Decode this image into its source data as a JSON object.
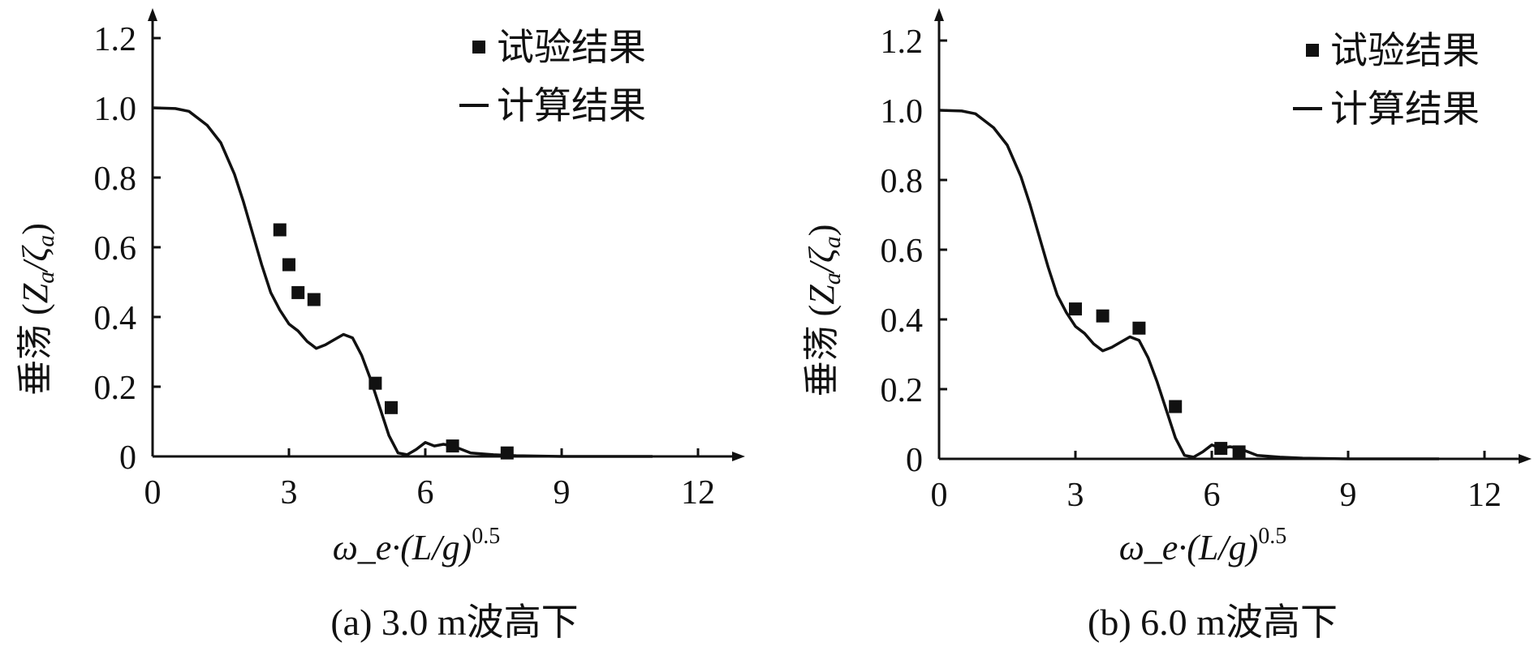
{
  "chart_data": [
    {
      "type": "scatter",
      "caption": "(a) 3.0 m波高下",
      "ylabel": "垂荡 (Z_a/ζ_a)",
      "xlabel_base": "ω_e·(L/g)",
      "xlabel_sup": "0.5",
      "xlim": [
        0,
        13
      ],
      "ylim": [
        0,
        1.3
      ],
      "xticks": [
        0,
        3,
        6,
        9,
        12
      ],
      "yticks": [
        0,
        0.2,
        0.4,
        0.6,
        0.8,
        1.0,
        1.2
      ],
      "ytick_labels": [
        "0",
        "0.2",
        "0.4",
        "0.6",
        "0.8",
        "1.0",
        "1.2"
      ],
      "legend": {
        "experiment": "试验结果",
        "calculation": "计算结果"
      },
      "series": [
        {
          "name": "试验结果",
          "kind": "markers",
          "x": [
            2.8,
            3.0,
            3.2,
            3.55,
            4.9,
            5.25,
            6.6,
            7.8
          ],
          "y": [
            0.65,
            0.55,
            0.47,
            0.45,
            0.21,
            0.14,
            0.03,
            0.01
          ]
        },
        {
          "name": "计算结果",
          "kind": "line",
          "x": [
            0,
            0.5,
            0.8,
            1.0,
            1.2,
            1.5,
            1.8,
            2.0,
            2.2,
            2.4,
            2.6,
            2.8,
            3.0,
            3.2,
            3.4,
            3.6,
            3.8,
            4.0,
            4.2,
            4.4,
            4.6,
            4.8,
            5.0,
            5.2,
            5.4,
            5.6,
            5.8,
            6.0,
            6.2,
            6.4,
            6.6,
            6.8,
            7.0,
            7.5,
            8.0,
            9.0,
            10.0,
            11.0
          ],
          "y": [
            1.0,
            0.998,
            0.99,
            0.97,
            0.95,
            0.9,
            0.81,
            0.73,
            0.64,
            0.55,
            0.47,
            0.42,
            0.38,
            0.36,
            0.33,
            0.31,
            0.32,
            0.335,
            0.35,
            0.34,
            0.29,
            0.22,
            0.14,
            0.06,
            0.01,
            0.005,
            0.02,
            0.04,
            0.03,
            0.035,
            0.03,
            0.02,
            0.01,
            0.005,
            0.002,
            0.0,
            0.0,
            0.0
          ]
        }
      ]
    },
    {
      "type": "scatter",
      "caption": "(b) 6.0 m波高下",
      "ylabel": "垂荡 (Z_a/ζ_a)",
      "xlabel_base": "ω_e·(L/g)",
      "xlabel_sup": "0.5",
      "xlim": [
        0,
        13
      ],
      "ylim": [
        0,
        1.3
      ],
      "xticks": [
        0,
        3,
        6,
        9,
        12
      ],
      "yticks": [
        0,
        0.2,
        0.4,
        0.6,
        0.8,
        1.0,
        1.2
      ],
      "ytick_labels": [
        "0",
        "0.2",
        "0.4",
        "0.6",
        "0.8",
        "1.0",
        "1.2"
      ],
      "legend": {
        "experiment": "试验结果",
        "calculation": "计算结果"
      },
      "series": [
        {
          "name": "试验结果",
          "kind": "markers",
          "x": [
            3.0,
            3.6,
            4.4,
            5.2,
            6.2,
            6.6
          ],
          "y": [
            0.43,
            0.41,
            0.375,
            0.15,
            0.03,
            0.02
          ]
        },
        {
          "name": "计算结果",
          "kind": "line",
          "x": [
            0,
            0.5,
            0.8,
            1.0,
            1.2,
            1.5,
            1.8,
            2.0,
            2.2,
            2.4,
            2.6,
            2.8,
            3.0,
            3.2,
            3.4,
            3.6,
            3.8,
            4.0,
            4.2,
            4.4,
            4.6,
            4.8,
            5.0,
            5.2,
            5.4,
            5.6,
            5.8,
            6.0,
            6.2,
            6.4,
            6.6,
            6.8,
            7.0,
            7.5,
            8.0,
            9.0,
            10.0,
            11.0
          ],
          "y": [
            1.0,
            0.998,
            0.99,
            0.97,
            0.95,
            0.9,
            0.81,
            0.73,
            0.64,
            0.55,
            0.47,
            0.42,
            0.38,
            0.36,
            0.33,
            0.31,
            0.32,
            0.335,
            0.35,
            0.34,
            0.29,
            0.22,
            0.14,
            0.06,
            0.01,
            0.005,
            0.02,
            0.04,
            0.03,
            0.035,
            0.03,
            0.02,
            0.01,
            0.005,
            0.002,
            0.0,
            0.0,
            0.0
          ]
        }
      ]
    }
  ]
}
